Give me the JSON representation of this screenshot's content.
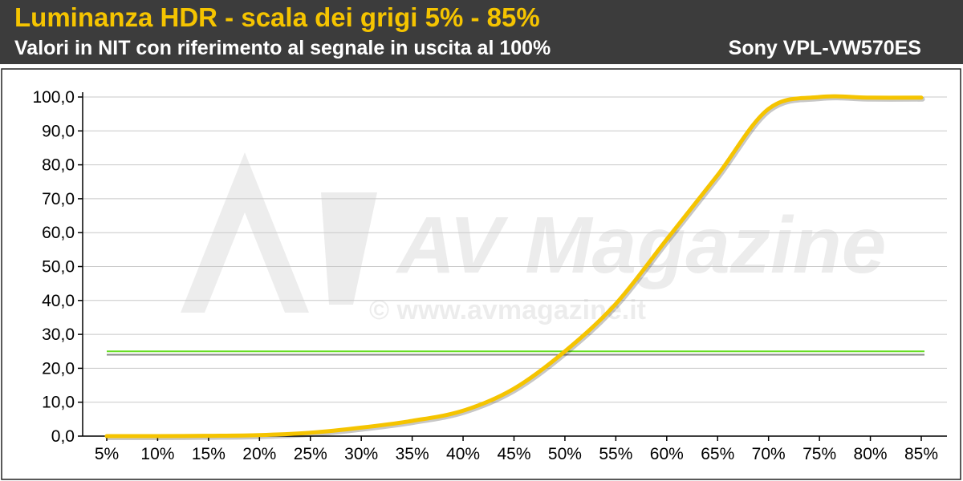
{
  "header": {
    "title": "Luminanza HDR - scala dei grigi 5% - 85%",
    "subtitle": "Valori in NIT con riferimento al segnale in uscita al 100%",
    "model": "Sony VPL-VW570ES"
  },
  "watermark": {
    "logo_text": "AV Magazine",
    "url": "© www.avmagazine.it"
  },
  "chart_data": {
    "type": "line",
    "title": "Luminanza HDR - scala dei grigi 5% - 85%",
    "subtitle": "Valori in NIT con riferimento al segnale in uscita al 100%",
    "xlabel": "",
    "ylabel": "",
    "categories": [
      "5%",
      "10%",
      "15%",
      "20%",
      "25%",
      "30%",
      "35%",
      "40%",
      "45%",
      "50%",
      "55%",
      "60%",
      "65%",
      "70%",
      "75%",
      "80%",
      "85%"
    ],
    "y_ticks": [
      "0,0",
      "10,0",
      "20,0",
      "30,0",
      "40,0",
      "50,0",
      "60,0",
      "70,0",
      "80,0",
      "90,0",
      "100,0"
    ],
    "ylim": [
      0,
      100
    ],
    "grid": true,
    "series": [
      {
        "values": [
          0.0,
          0.0,
          0.1,
          0.3,
          1.0,
          2.5,
          4.5,
          7.5,
          14.0,
          25.0,
          39.0,
          58.0,
          77.0,
          96.5,
          100.0,
          99.8,
          99.8
        ],
        "color": "#f5c400"
      }
    ],
    "reference_lines": [
      {
        "value": 25.0,
        "color": "#66dd22"
      },
      {
        "value": 24.0,
        "color": "#888888"
      }
    ]
  }
}
